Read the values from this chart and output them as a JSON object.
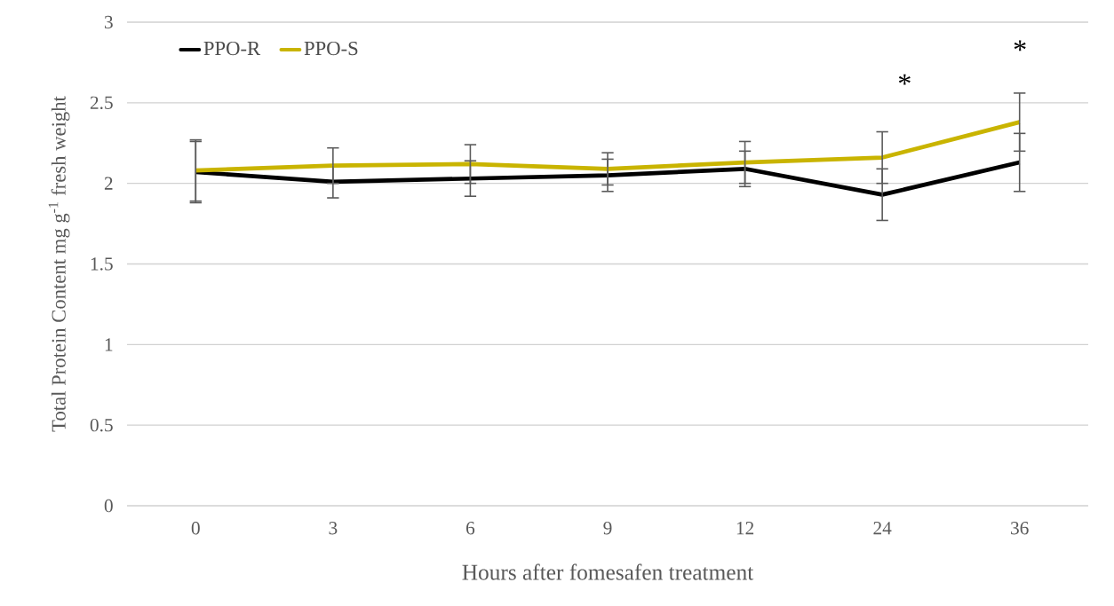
{
  "chart_data": {
    "type": "line",
    "xlabel": "Hours after fomesafen treatment",
    "ylabel": "Total Protein Content mg g$^{-1}$ fresh weight",
    "categories": [
      "0",
      "3",
      "6",
      "9",
      "12",
      "24",
      "36"
    ],
    "series": [
      {
        "name": "PPO-R",
        "color": "#000000",
        "values": [
          2.07,
          2.01,
          2.03,
          2.05,
          2.09,
          1.93,
          2.13
        ],
        "errors": [
          0.19,
          0.1,
          0.11,
          0.1,
          0.11,
          0.16,
          0.18
        ]
      },
      {
        "name": "PPO-S",
        "color": "#c9b400",
        "values": [
          2.08,
          2.11,
          2.12,
          2.09,
          2.13,
          2.16,
          2.38
        ],
        "errors": [
          0.19,
          0.11,
          0.12,
          0.1,
          0.13,
          0.16,
          0.18
        ]
      }
    ],
    "ylim": [
      0,
      3
    ],
    "yticks": [
      0,
      0.5,
      1,
      1.5,
      2,
      2.5,
      3
    ],
    "grid": "y",
    "legend": "top left",
    "marker": "none",
    "line_style": "solid",
    "annotations": [
      "*",
      "*"
    ]
  }
}
